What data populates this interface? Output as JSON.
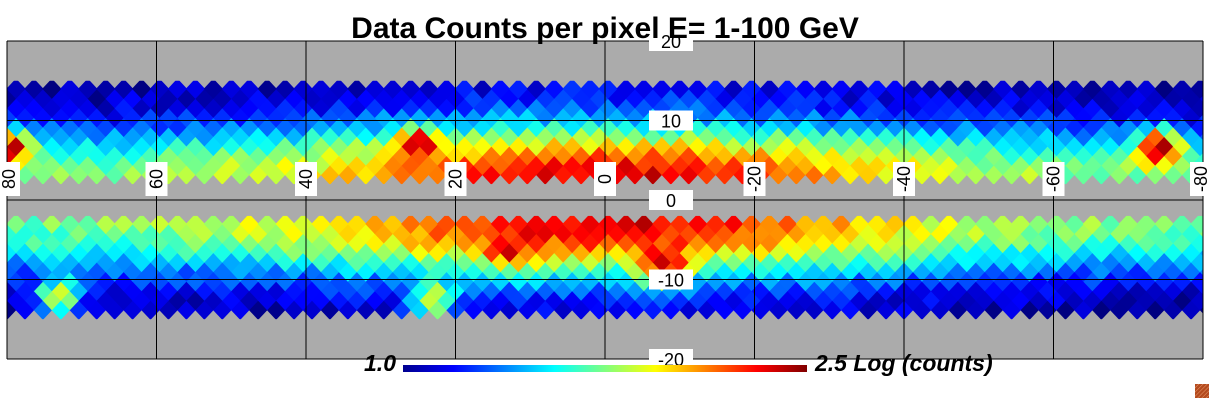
{
  "chart_data": {
    "type": "heatmap",
    "title": "Data Counts per pixel E= 1-100 GeV",
    "x_axis": {
      "range": [
        80,
        -80
      ],
      "ticks": [
        80,
        60,
        40,
        20,
        0,
        -20,
        -40,
        -60,
        -80
      ],
      "tick_labels": [
        "80",
        "60",
        "40",
        "20",
        "0",
        "-20",
        "-40",
        "-60",
        "-80"
      ]
    },
    "y_axis": {
      "range": [
        -20,
        20
      ],
      "ticks": [
        20,
        10,
        0,
        -10,
        -20
      ],
      "tick_labels": [
        "20",
        "10",
        "0",
        "-10",
        "-20"
      ]
    },
    "data_bands_lat": [
      [
        2,
        15
      ],
      [
        -15,
        -2
      ]
    ],
    "grid": true,
    "colorbar": {
      "min_label": "1.0",
      "max_label": "2.5 Log (counts)",
      "range": [
        1.0,
        2.5
      ],
      "colormap": "jet",
      "position": "bottom"
    },
    "hotspots": [
      {
        "lon": 80,
        "lat": 6.5,
        "value": 2.5
      },
      {
        "lon": -74,
        "lat": 6.5,
        "value": 2.5
      },
      {
        "lon": -8,
        "lat": -8,
        "value": 2.45
      },
      {
        "lon": 13,
        "lat": -6,
        "value": 2.35
      },
      {
        "lon": 25,
        "lat": 7,
        "value": 2.4
      },
      {
        "lon": 73,
        "lat": -12,
        "value": 1.95
      },
      {
        "lon": 23,
        "lat": -12.5,
        "value": 1.95
      }
    ],
    "background_color": "#ababab"
  }
}
